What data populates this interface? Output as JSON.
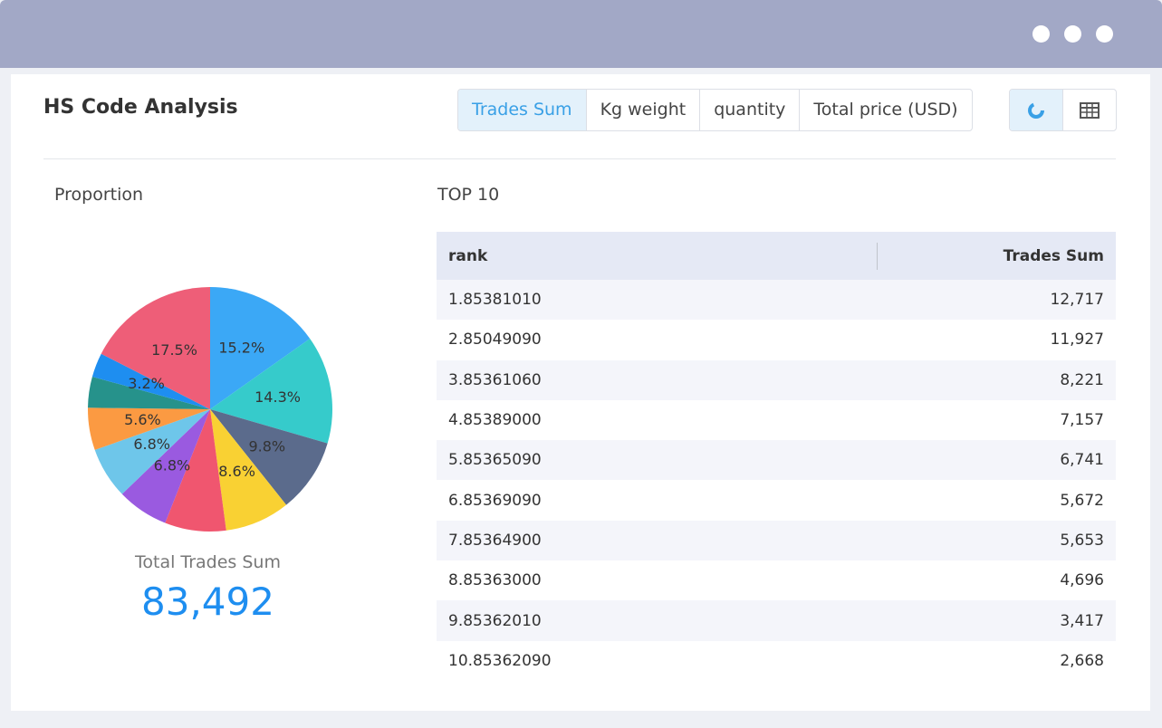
{
  "header": {
    "title": "HS Code Analysis",
    "tabs": [
      "Trades Sum",
      "Kg weight",
      "quantity",
      "Total price (USD)"
    ],
    "active_tab": 0
  },
  "chart_data": {
    "type": "pie",
    "title": "Proportion",
    "values": [
      15.2,
      14.3,
      9.8,
      8.6,
      8.1,
      6.8,
      6.8,
      5.6,
      4.1,
      3.2,
      17.5
    ],
    "value_labels": [
      "15.2%",
      "14.3%",
      "9.8%",
      "8.6%",
      null,
      "6.8%",
      "6.8%",
      "5.6%",
      null,
      "3.2%",
      "17.5%"
    ],
    "colors": [
      "#3ba8f6",
      "#36cbcb",
      "#5b6b8c",
      "#f9d133",
      "#f0566f",
      "#9a5ae0",
      "#6ec6ea",
      "#fb9a42",
      "#26928b",
      "#1e8ef0",
      "#ee5e78"
    ],
    "total_label": "Total Trades Sum",
    "total": "83,492"
  },
  "table": {
    "title": "TOP 10",
    "headers": [
      "rank",
      "Trades Sum"
    ],
    "rows": [
      [
        "1.85381010",
        "12,717"
      ],
      [
        "2.85049090",
        "11,927"
      ],
      [
        "3.85361060",
        "8,221"
      ],
      [
        "4.85389000",
        "7,157"
      ],
      [
        "5.85365090",
        "6,741"
      ],
      [
        "6.85369090",
        "5,672"
      ],
      [
        "7.85364900",
        "5,653"
      ],
      [
        "8.85363000",
        "4,696"
      ],
      [
        "9.85362010",
        "3,417"
      ],
      [
        "10.85362090",
        "2,668"
      ]
    ]
  }
}
